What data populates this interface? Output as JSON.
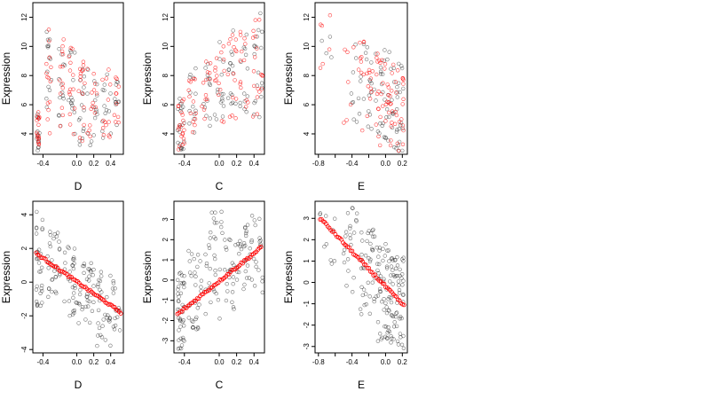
{
  "chart_data": [
    {
      "type": "scatter",
      "xlabel": "D",
      "ylabel": "Expression",
      "xlim": [
        -0.52,
        0.55
      ],
      "ylim": [
        2.6,
        13.0
      ],
      "xticks": [
        -0.4,
        0.0,
        0.2,
        0.4
      ],
      "xtick_labels": [
        "-0.4",
        "0.0",
        "0.2",
        "0.4"
      ],
      "yticks": [
        4,
        6,
        8,
        10,
        12
      ],
      "ytick_labels": [
        "4",
        "6",
        "8",
        "10",
        "12"
      ],
      "series_colors": [
        "#000000",
        "#ff0000"
      ],
      "point_clusters": [
        {
          "x": [
            -0.48,
            -0.44
          ],
          "y": [
            2.8,
            5.5
          ],
          "n": 30,
          "n_red": 16
        },
        {
          "x": [
            -0.36,
            -0.3
          ],
          "y": [
            4.0,
            11.5
          ],
          "n": 28,
          "n_red": 14
        },
        {
          "x": [
            -0.22,
            -0.14
          ],
          "y": [
            4.5,
            10.5
          ],
          "n": 26,
          "n_red": 13
        },
        {
          "x": [
            -0.1,
            -0.02
          ],
          "y": [
            3.8,
            10.0
          ],
          "n": 28,
          "n_red": 14
        },
        {
          "x": [
            0.02,
            0.1
          ],
          "y": [
            3.0,
            9.0
          ],
          "n": 30,
          "n_red": 15
        },
        {
          "x": [
            0.12,
            0.24
          ],
          "y": [
            3.2,
            8.5
          ],
          "n": 30,
          "n_red": 15
        },
        {
          "x": [
            0.3,
            0.42
          ],
          "y": [
            3.5,
            8.5
          ],
          "n": 26,
          "n_red": 13
        },
        {
          "x": [
            0.44,
            0.5
          ],
          "y": [
            4.5,
            8.0
          ],
          "n": 20,
          "n_red": 10
        }
      ]
    },
    {
      "type": "scatter",
      "xlabel": "C",
      "ylabel": "Expression",
      "xlim": [
        -0.52,
        0.52
      ],
      "ylim": [
        2.6,
        13.0
      ],
      "xticks": [
        -0.4,
        0.0,
        0.2,
        0.4
      ],
      "xtick_labels": [
        "-0.4",
        "0.0",
        "0.2",
        "0.4"
      ],
      "yticks": [
        4,
        6,
        8,
        10,
        12
      ],
      "ytick_labels": [
        "4",
        "6",
        "8",
        "10",
        "12"
      ],
      "series_colors": [
        "#000000",
        "#ff0000"
      ],
      "point_clusters": [
        {
          "x": [
            -0.48,
            -0.4
          ],
          "y": [
            2.9,
            6.5
          ],
          "n": 40,
          "n_red": 20
        },
        {
          "x": [
            -0.36,
            -0.26
          ],
          "y": [
            4.0,
            8.5
          ],
          "n": 26,
          "n_red": 13
        },
        {
          "x": [
            -0.2,
            -0.1
          ],
          "y": [
            4.5,
            9.0
          ],
          "n": 26,
          "n_red": 13
        },
        {
          "x": [
            -0.06,
            0.06
          ],
          "y": [
            4.5,
            10.5
          ],
          "n": 30,
          "n_red": 15
        },
        {
          "x": [
            0.1,
            0.2
          ],
          "y": [
            5.0,
            11.5
          ],
          "n": 30,
          "n_red": 15
        },
        {
          "x": [
            0.24,
            0.34
          ],
          "y": [
            5.5,
            11.5
          ],
          "n": 26,
          "n_red": 13
        },
        {
          "x": [
            0.38,
            0.5
          ],
          "y": [
            5.0,
            12.6
          ],
          "n": 36,
          "n_red": 18
        }
      ]
    },
    {
      "type": "scatter",
      "xlabel": "E",
      "ylabel": "Expression",
      "xlim": [
        -0.84,
        0.26
      ],
      "ylim": [
        2.6,
        13.0
      ],
      "xticks": [
        -0.8,
        -0.6,
        -0.4,
        -0.2,
        0.0,
        0.2
      ],
      "xtick_labels": [
        "-0.8",
        "",
        "-0.4",
        "",
        "0.0",
        "0.2"
      ],
      "yticks": [
        4,
        6,
        8,
        10,
        12
      ],
      "ytick_labels": [
        "4",
        "6",
        "8",
        "10",
        "12"
      ],
      "series_colors": [
        "#000000",
        "#ff0000"
      ],
      "point_clusters": [
        {
          "x": [
            -0.78,
            -0.6
          ],
          "y": [
            8.0,
            12.5
          ],
          "n": 10,
          "n_red": 6
        },
        {
          "x": [
            -0.5,
            -0.3
          ],
          "y": [
            4.5,
            10.5
          ],
          "n": 20,
          "n_red": 10
        },
        {
          "x": [
            -0.3,
            -0.1
          ],
          "y": [
            4.0,
            10.5
          ],
          "n": 40,
          "n_red": 20
        },
        {
          "x": [
            -0.1,
            0.05
          ],
          "y": [
            3.2,
            10.0
          ],
          "n": 50,
          "n_red": 25
        },
        {
          "x": [
            0.05,
            0.22
          ],
          "y": [
            2.8,
            9.0
          ],
          "n": 60,
          "n_red": 30
        }
      ]
    },
    {
      "type": "scatter",
      "xlabel": "D",
      "ylabel": "Expression",
      "xlim": [
        -0.52,
        0.55
      ],
      "ylim": [
        -4.2,
        4.8
      ],
      "xticks": [
        -0.4,
        0.0,
        0.2,
        0.4
      ],
      "xtick_labels": [
        "-0.4",
        "0.0",
        "0.2",
        "0.4"
      ],
      "yticks": [
        -4,
        -2,
        0,
        2,
        4
      ],
      "ytick_labels": [
        "-4",
        "-2",
        "0",
        "2",
        "4"
      ],
      "series_colors": [
        "#000000",
        "#ff0000"
      ],
      "fitted_line": {
        "x": [
          -0.48,
          0.52
        ],
        "y": [
          1.7,
          -1.8
        ]
      },
      "point_clusters": [
        {
          "x": [
            -0.48,
            -0.4
          ],
          "y": [
            -1.5,
            4.5
          ],
          "n": 30,
          "n_red": 0
        },
        {
          "x": [
            -0.36,
            -0.2
          ],
          "y": [
            -1.0,
            3.0
          ],
          "n": 30,
          "n_red": 0
        },
        {
          "x": [
            -0.16,
            0.0
          ],
          "y": [
            -2.0,
            2.5
          ],
          "n": 30,
          "n_red": 0
        },
        {
          "x": [
            0.02,
            0.2
          ],
          "y": [
            -2.5,
            1.5
          ],
          "n": 34,
          "n_red": 0
        },
        {
          "x": [
            0.22,
            0.4
          ],
          "y": [
            -3.8,
            1.0
          ],
          "n": 30,
          "n_red": 0
        },
        {
          "x": [
            0.42,
            0.52
          ],
          "y": [
            -3.0,
            0.5
          ],
          "n": 16,
          "n_red": 0
        }
      ]
    },
    {
      "type": "scatter",
      "xlabel": "C",
      "ylabel": "Expression",
      "xlim": [
        -0.52,
        0.52
      ],
      "ylim": [
        -3.6,
        3.9
      ],
      "xticks": [
        -0.4,
        0.0,
        0.2,
        0.4
      ],
      "xtick_labels": [
        "-0.4",
        "0.0",
        "0.2",
        "0.4"
      ],
      "yticks": [
        -3,
        -2,
        -1,
        0,
        1,
        2,
        3
      ],
      "ytick_labels": [
        "-3",
        "-2",
        "-1",
        "0",
        "1",
        "2",
        "3"
      ],
      "series_colors": [
        "#000000",
        "#ff0000"
      ],
      "fitted_line": {
        "x": [
          -0.48,
          0.48
        ],
        "y": [
          -1.7,
          1.6
        ]
      },
      "point_clusters": [
        {
          "x": [
            -0.48,
            -0.4
          ],
          "y": [
            -3.4,
            0.5
          ],
          "n": 40,
          "n_red": 0
        },
        {
          "x": [
            -0.36,
            -0.2
          ],
          "y": [
            -2.5,
            1.5
          ],
          "n": 30,
          "n_red": 0
        },
        {
          "x": [
            -0.16,
            0.04
          ],
          "y": [
            -2.2,
            3.7
          ],
          "n": 34,
          "n_red": 0
        },
        {
          "x": [
            0.06,
            0.26
          ],
          "y": [
            -1.5,
            2.5
          ],
          "n": 34,
          "n_red": 0
        },
        {
          "x": [
            0.28,
            0.5
          ],
          "y": [
            -1.0,
            3.2
          ],
          "n": 40,
          "n_red": 0
        }
      ]
    },
    {
      "type": "scatter",
      "xlabel": "E",
      "ylabel": "Expression",
      "xlim": [
        -0.84,
        0.26
      ],
      "ylim": [
        -3.3,
        3.8
      ],
      "xticks": [
        -0.8,
        -0.6,
        -0.4,
        -0.2,
        0.0,
        0.2
      ],
      "xtick_labels": [
        "-0.8",
        "",
        "-0.4",
        "",
        "0.0",
        "0.2"
      ],
      "yticks": [
        -3,
        -2,
        -1,
        0,
        1,
        2,
        3
      ],
      "ytick_labels": [
        "-3",
        "-2",
        "-1",
        "0",
        "1",
        "2",
        "3"
      ],
      "series_colors": [
        "#000000",
        "#ff0000"
      ],
      "fitted_line": {
        "x": [
          -0.78,
          0.22
        ],
        "y": [
          3.0,
          -1.1
        ]
      },
      "point_clusters": [
        {
          "x": [
            -0.8,
            -0.6
          ],
          "y": [
            0.8,
            3.6
          ],
          "n": 10,
          "n_red": 0
        },
        {
          "x": [
            -0.5,
            -0.3
          ],
          "y": [
            -0.5,
            3.5
          ],
          "n": 22,
          "n_red": 0
        },
        {
          "x": [
            -0.3,
            -0.1
          ],
          "y": [
            -1.5,
            2.5
          ],
          "n": 40,
          "n_red": 0
        },
        {
          "x": [
            -0.1,
            0.05
          ],
          "y": [
            -2.8,
            1.8
          ],
          "n": 50,
          "n_red": 0
        },
        {
          "x": [
            0.05,
            0.22
          ],
          "y": [
            -3.1,
            1.2
          ],
          "n": 60,
          "n_red": 0
        }
      ]
    }
  ]
}
